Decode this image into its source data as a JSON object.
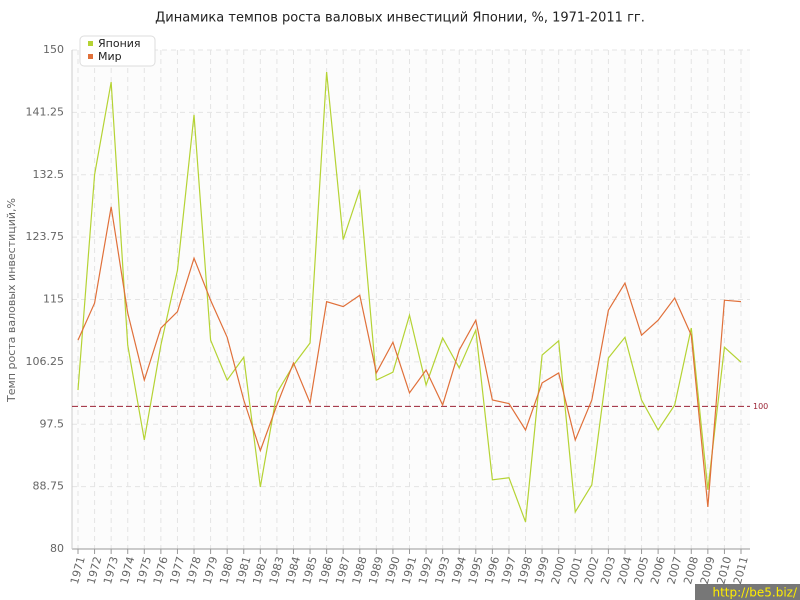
{
  "chart_data": {
    "type": "line",
    "title": "Динамика темпов роста валовых инвестиций Японии, %, 1971-2011 гг.",
    "y_label": "Темп роста валовых инвестиций,%",
    "categories": [
      "1971",
      "1972",
      "1973",
      "1974",
      "1975",
      "1976",
      "1977",
      "1978",
      "1979",
      "1980",
      "1981",
      "1982",
      "1983",
      "1984",
      "1985",
      "1986",
      "1987",
      "1988",
      "1989",
      "1990",
      "1991",
      "1992",
      "1993",
      "1994",
      "1995",
      "1996",
      "1997",
      "1998",
      "1999",
      "2000",
      "2001",
      "2002",
      "2003",
      "2004",
      "2005",
      "2006",
      "2007",
      "2008",
      "2009",
      "2010",
      "2011"
    ],
    "series": [
      {
        "name": "Япония",
        "color": "#b5d334",
        "values": [
          102.3,
          132.5,
          145.5,
          108.6,
          95.3,
          108.6,
          119.1,
          140.9,
          109.3,
          103.7,
          106.9,
          88.7,
          101.9,
          105.8,
          108.9,
          146.9,
          123.4,
          130.4,
          103.7,
          104.8,
          112.8,
          103.0,
          109.6,
          105.4,
          110.7,
          89.7,
          90.0,
          83.8,
          107.2,
          109.2,
          85.2,
          89.0,
          106.8,
          109.7,
          100.9,
          96.7,
          100.2,
          111.0,
          88.3,
          108.3,
          106.2
        ]
      },
      {
        "name": "Мир",
        "color": "#e0703a",
        "values": [
          109.3,
          114.5,
          128.0,
          113.1,
          103.7,
          111.0,
          113.3,
          120.8,
          114.9,
          109.7,
          100.9,
          93.8,
          100.2,
          106.1,
          100.5,
          114.7,
          114.0,
          115.6,
          104.7,
          109.0,
          101.9,
          105.1,
          100.2,
          107.9,
          112.1,
          100.9,
          100.4,
          96.7,
          103.3,
          104.7,
          95.3,
          100.9,
          113.5,
          117.3,
          110.0,
          112.1,
          115.2,
          110.0,
          85.9,
          114.9,
          114.7
        ]
      }
    ],
    "ylim": [
      80,
      150
    ],
    "yticks": [
      80,
      88.75,
      97.5,
      106.25,
      115,
      123.75,
      132.5,
      141.25,
      150
    ],
    "hline": 100,
    "hline_color": "#9b2335",
    "grid": true,
    "legend": "top-left",
    "watermark": "http://be5.biz/"
  }
}
